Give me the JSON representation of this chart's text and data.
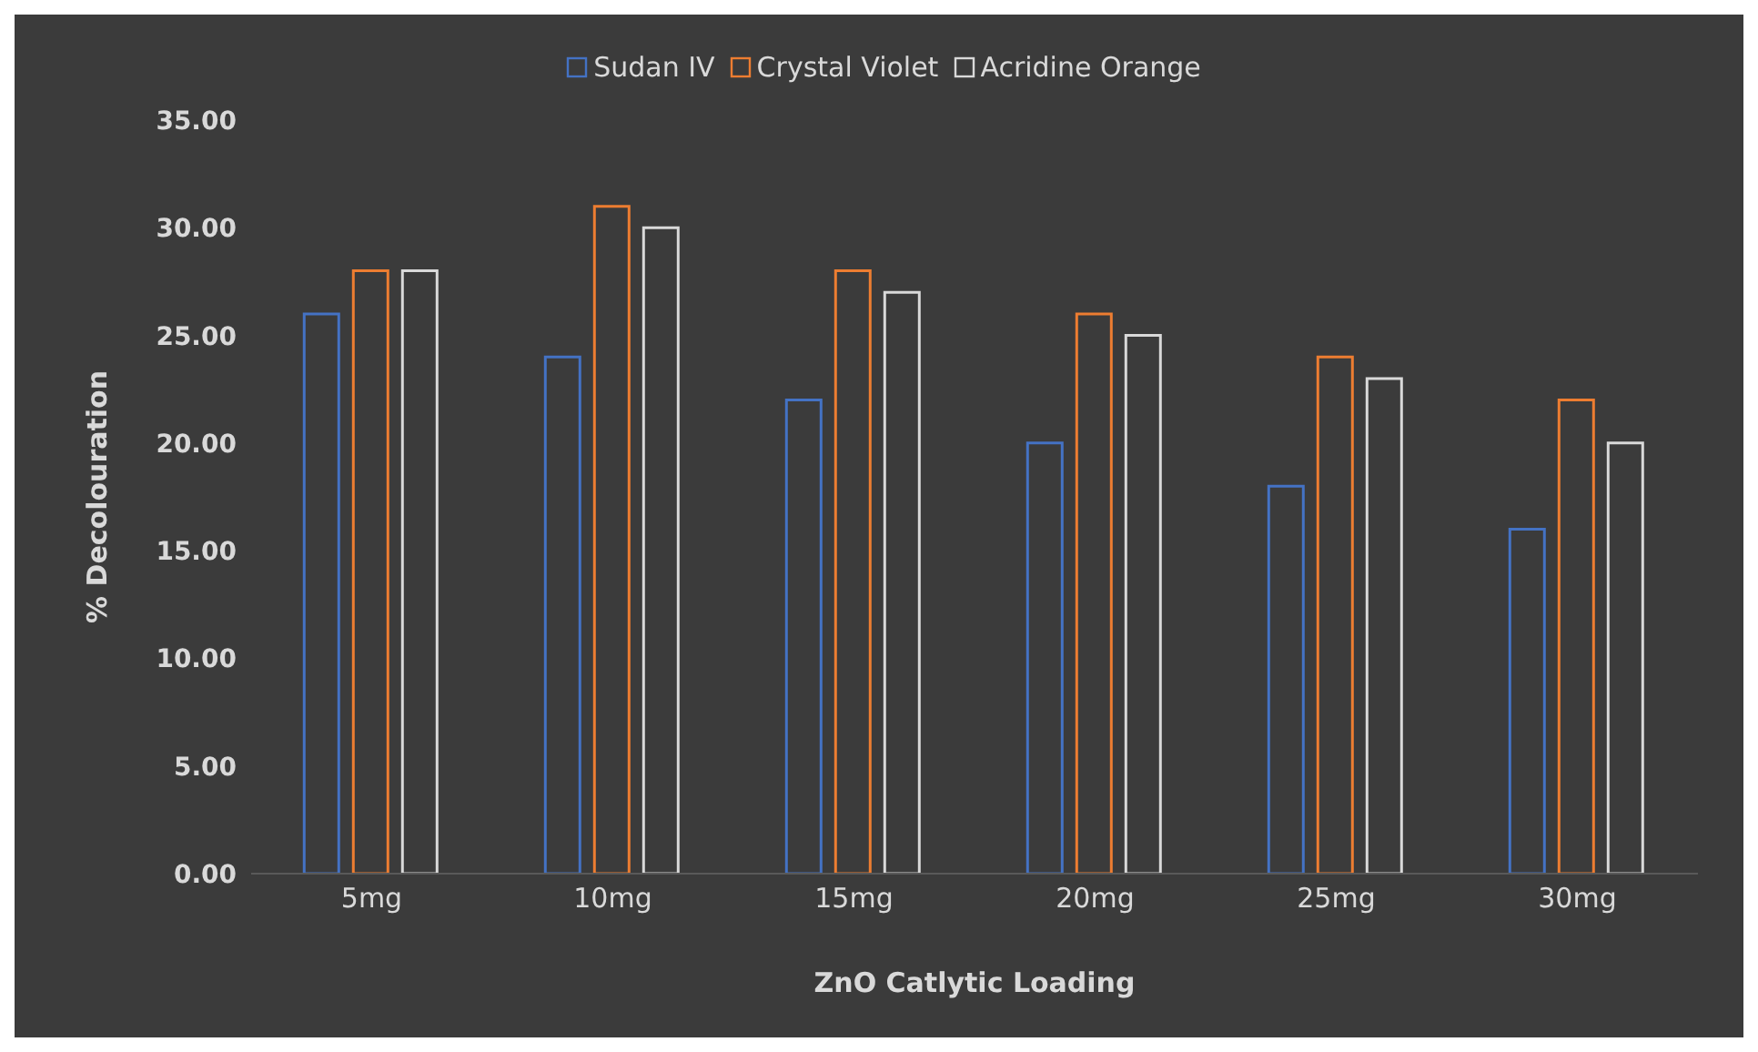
{
  "chart_data": {
    "type": "bar",
    "xlabel": "ZnO Catlytic Loading",
    "ylabel": "% Decolouration",
    "categories": [
      "5mg",
      "10mg",
      "15mg",
      "20mg",
      "25mg",
      "30mg"
    ],
    "series": [
      {
        "name": "Sudan IV",
        "color": "#4472c4",
        "values": [
          26,
          24,
          22,
          20,
          18,
          16
        ]
      },
      {
        "name": "Crystal Violet",
        "color": "#ed7d31",
        "values": [
          28,
          31,
          28,
          26,
          24,
          22
        ]
      },
      {
        "name": "Acridine Orange",
        "color": "#d9d9d9",
        "values": [
          28,
          30,
          27,
          25,
          23,
          20
        ]
      }
    ],
    "ylim": [
      0,
      35
    ],
    "yticks": [
      {
        "value": 0,
        "label": "0.00"
      },
      {
        "value": 5,
        "label": "5.00"
      },
      {
        "value": 10,
        "label": "10.00"
      },
      {
        "value": 15,
        "label": "15.00"
      },
      {
        "value": 20,
        "label": "20.00"
      },
      {
        "value": 25,
        "label": "25.00"
      },
      {
        "value": 30,
        "label": "30.00"
      },
      {
        "value": 35,
        "label": "35.00"
      }
    ],
    "grid": false,
    "legend": "top"
  }
}
